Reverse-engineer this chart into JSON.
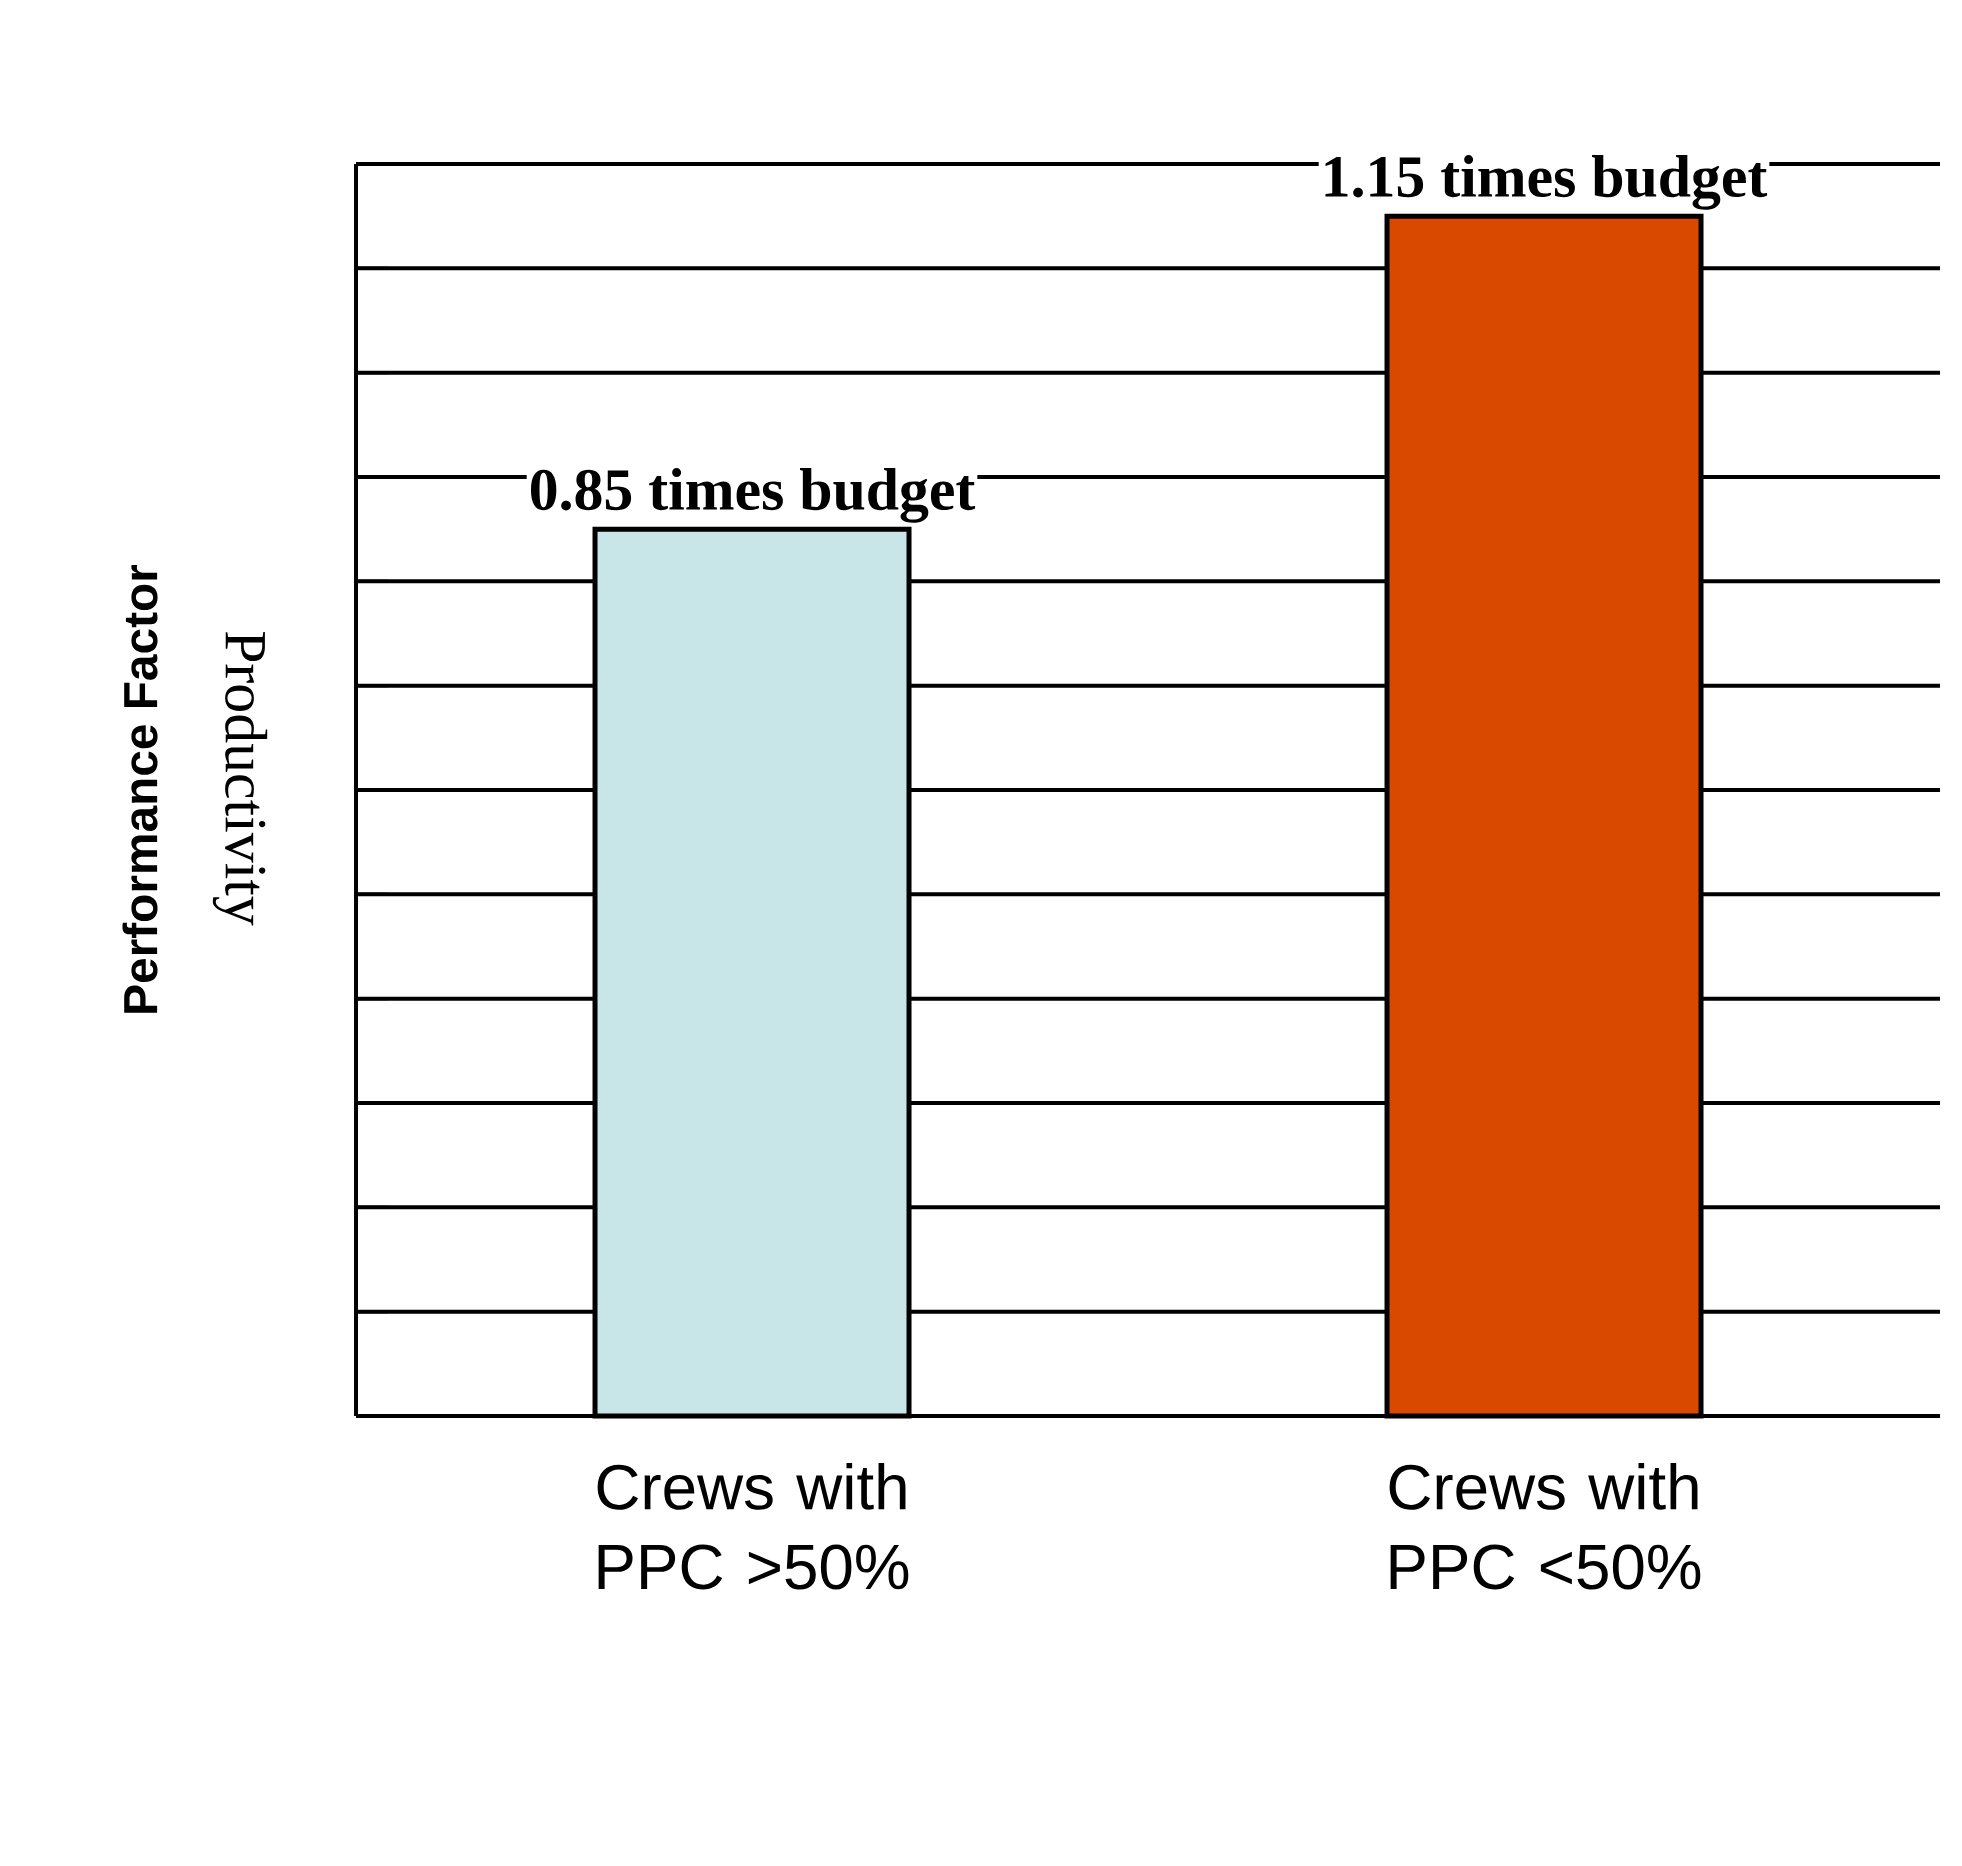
{
  "chart_data": {
    "type": "bar",
    "categories": [
      "Crews with PPC >50%",
      "Crews with PPC <50%"
    ],
    "values": [
      0.85,
      1.15
    ],
    "colors": [
      "#c8e6e8",
      "#d94a00"
    ],
    "value_labels": [
      "0.85 times budget",
      "1.15 times budget"
    ],
    "ylabel": "Performance Factor",
    "annotations": [
      "Productivity"
    ],
    "ylim": [
      0,
      1.2
    ],
    "yticks": [
      {
        "value": 0,
        "label": null
      },
      {
        "value": 0.1,
        "label": null
      },
      {
        "value": 0.2,
        "label": null
      },
      {
        "value": 0.3,
        "label": null
      },
      {
        "value": 0.4,
        "label": null
      },
      {
        "value": 0.5,
        "label": null
      },
      {
        "value": 0.6,
        "label": null
      },
      {
        "value": 0.7,
        "label": null
      },
      {
        "value": 0.8,
        "label": null
      },
      {
        "value": 0.9,
        "label": null
      },
      {
        "value": 1.0,
        "label": null
      },
      {
        "value": 1.1,
        "label": null
      },
      {
        "value": 1.2,
        "label": null
      }
    ],
    "grid": "y",
    "tick_labels": "x"
  }
}
